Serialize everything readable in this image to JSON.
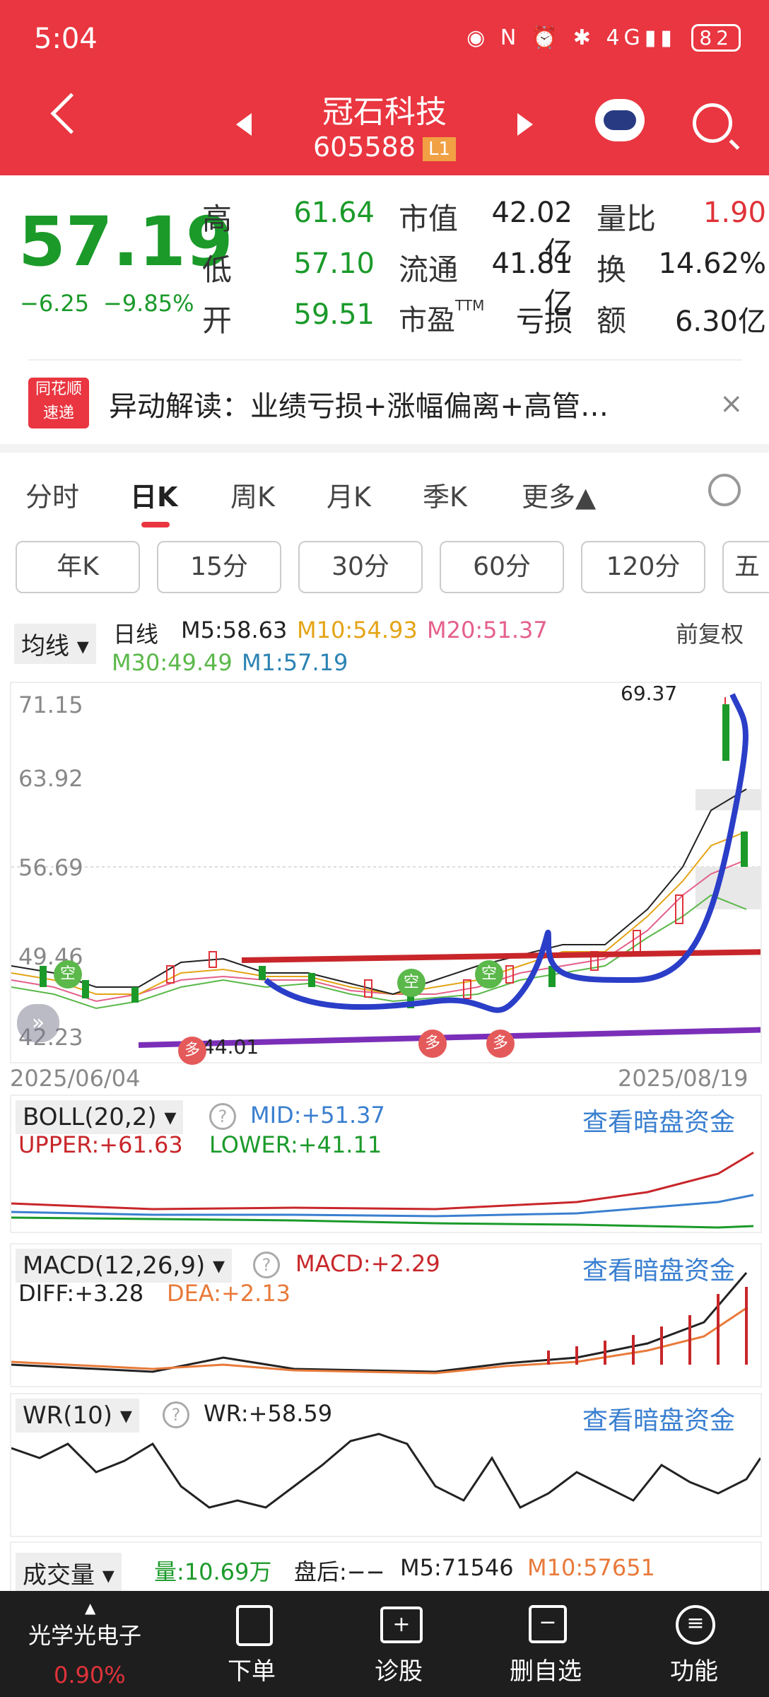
{
  "status_bar": {
    "time": "5:04",
    "battery": "82"
  },
  "header": {
    "title": "冠石科技",
    "code": "605588",
    "badge": "L1"
  },
  "quote": {
    "price": "57.19",
    "change": "−6.25",
    "change_pct": "−9.85%",
    "stats": [
      {
        "label": "高",
        "value": "61.64"
      },
      {
        "label": "低",
        "value": "57.10"
      },
      {
        "label": "开",
        "value": "59.51"
      }
    ],
    "metrics": [
      {
        "label": "市值",
        "value": "42.02亿"
      },
      {
        "label": "流通",
        "value": "41.81亿"
      },
      {
        "label": "市盈TTM",
        "value": "亏损"
      }
    ],
    "extra": [
      {
        "label": "量比",
        "value": "1.90"
      },
      {
        "label": "换",
        "value": "14.62%"
      },
      {
        "label": "额",
        "value": "6.30亿"
      }
    ]
  },
  "news": {
    "logo_line1": "同花顺",
    "logo_line2": "速递",
    "text": "异动解读：业绩亏损+涨幅偏离+高管…"
  },
  "tabs": [
    "分时",
    "日K",
    "周K",
    "月K",
    "季K",
    "更多▲"
  ],
  "period_chips": [
    "年K",
    "15分",
    "30分",
    "60分",
    "120分",
    "五"
  ],
  "ma_info": {
    "select": "均线",
    "day_label": "日线",
    "m5": "M5:58.63",
    "m10": "M10:54.93",
    "m20": "M20:51.37",
    "m30": "M30:49.49",
    "m1": "M1:57.19",
    "adjust": "前复权"
  },
  "kline": {
    "y_ticks": [
      "71.15",
      "63.92",
      "56.69",
      "49.46",
      "42.23"
    ],
    "dates": [
      "2025/06/04",
      "2025/08/19"
    ],
    "high_label": "69.37",
    "low_label": "44.01",
    "markers": [
      "空",
      "空",
      "空",
      "多",
      "多",
      "多"
    ]
  },
  "boll": {
    "select": "BOLL(20,2)",
    "mid": "MID:+51.37",
    "upper": "UPPER:+61.63",
    "lower": "LOWER:+41.11",
    "link": "查看暗盘资金"
  },
  "macd": {
    "select": "MACD(12,26,9)",
    "macd": "MACD:+2.29",
    "diff": "DIFF:+3.28",
    "dea": "DEA:+2.13",
    "link": "查看暗盘资金"
  },
  "wr": {
    "select": "WR(10)",
    "wr": "WR:+58.59",
    "link": "查看暗盘资金"
  },
  "volume": {
    "select": "成交量",
    "vol": "量:10.69万",
    "after": "盘后:−−",
    "m5": "M5:71546",
    "m10": "M10:57651"
  },
  "bottom_nav": {
    "stock": "光学光电子",
    "stock_pct": "0.90%",
    "items": [
      "下单",
      "诊股",
      "删自选",
      "功能"
    ]
  },
  "colors": {
    "header": "#e93640",
    "up": "#e0333a",
    "down": "#1b9a2a",
    "blue": "#3a7fd0"
  }
}
